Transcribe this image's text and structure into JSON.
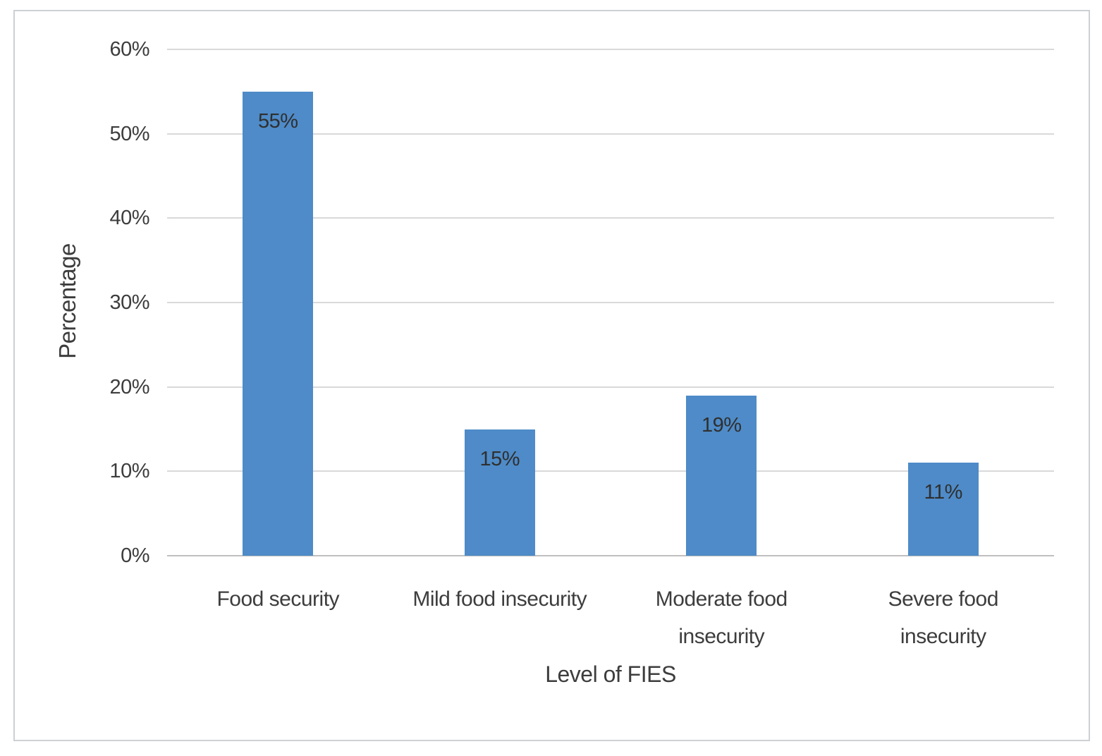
{
  "figure": {
    "background": "#ffffff",
    "frame_border_color": "#cdd0d4"
  },
  "chart_data": {
    "type": "bar",
    "title": "",
    "xlabel": "Level of FIES",
    "ylabel": "Percentage",
    "categories": [
      "Food security",
      "Mild food insecurity",
      "Moderate food insecurity",
      "Severe food insecurity"
    ],
    "category_lines": [
      [
        "Food security"
      ],
      [
        "Mild food insecurity"
      ],
      [
        "Moderate food",
        "insecurity"
      ],
      [
        "Severe food",
        "insecurity"
      ]
    ],
    "values": [
      55,
      15,
      19,
      11
    ],
    "value_labels": [
      "55%",
      "15%",
      "19%",
      "11%"
    ],
    "ylim": [
      0,
      60
    ],
    "ytick_values": [
      0,
      10,
      20,
      30,
      40,
      50,
      60
    ],
    "ytick_labels": [
      "0%",
      "10%",
      "20%",
      "30%",
      "40%",
      "50%",
      "60%"
    ],
    "grid": true,
    "legend": false,
    "bar_color": "#4e8bc8",
    "gridline_color": "#d9d9d9",
    "axisline_color": "#bfbfbf",
    "text_color": "#3d3d3d",
    "value_label_color": "#2f2f2f"
  }
}
